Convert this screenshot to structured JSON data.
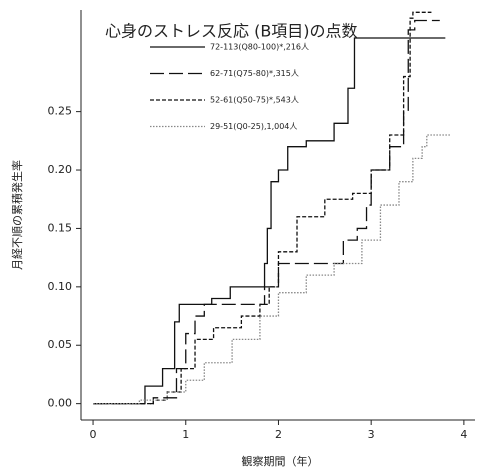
{
  "chart_data": {
    "type": "step",
    "title": "心身のストレス反応 (B項目)の点数",
    "x_label": "観察期間（年）",
    "y_label": "月経不順の累積発生率",
    "xlim": [
      -0.13,
      4.12
    ],
    "ylim": [
      -0.014,
      0.337
    ],
    "xticks": [
      0,
      1,
      2,
      3,
      4
    ],
    "yticks": [
      {
        "value": 0,
        "label": "0.00"
      },
      {
        "value": 0.05,
        "label": "0.05"
      },
      {
        "value": 0.1,
        "label": "0.10"
      },
      {
        "value": 0.15,
        "label": "0.15"
      },
      {
        "value": 0.2,
        "label": "0.20"
      },
      {
        "value": 0.25,
        "label": "0.25"
      }
    ],
    "series": [
      {
        "name": "72-113(Q80-100)*,216人",
        "color": "#111",
        "dash": "none",
        "x": [
          0,
          0.56,
          0.75,
          0.88,
          0.93,
          1.28,
          1.48,
          1.85,
          1.88,
          1.92,
          2.0,
          2.1,
          2.3,
          2.6,
          2.75,
          2.82,
          3.8
        ],
        "values": [
          0,
          0.015,
          0.03,
          0.07,
          0.085,
          0.09,
          0.1,
          0.12,
          0.15,
          0.19,
          0.2,
          0.22,
          0.225,
          0.24,
          0.27,
          0.313,
          0.313
        ]
      },
      {
        "name": "62-71(Q75-80)*,315人",
        "color": "#111",
        "dash": "14 5",
        "x": [
          0,
          0.65,
          0.9,
          1.0,
          1.1,
          1.2,
          1.85,
          2.0,
          2.7,
          2.85,
          2.95,
          3.0,
          3.2,
          3.35,
          3.4,
          3.47,
          3.74
        ],
        "values": [
          0,
          0.005,
          0.03,
          0.06,
          0.075,
          0.085,
          0.1,
          0.12,
          0.14,
          0.15,
          0.17,
          0.2,
          0.22,
          0.25,
          0.32,
          0.328,
          0.328
        ]
      },
      {
        "name": "52-61(Q50-75)*,543人",
        "color": "#111",
        "dash": "4 2",
        "x": [
          0,
          0.65,
          0.8,
          0.95,
          1.1,
          1.3,
          1.6,
          1.8,
          1.9,
          2.0,
          2.2,
          2.5,
          2.8,
          3.0,
          3.2,
          3.35,
          3.42,
          3.45,
          3.65
        ],
        "values": [
          0,
          0.003,
          0.01,
          0.03,
          0.055,
          0.065,
          0.075,
          0.085,
          0.1,
          0.13,
          0.16,
          0.175,
          0.18,
          0.2,
          0.23,
          0.28,
          0.33,
          0.335,
          0.335
        ]
      },
      {
        "name": "29-51(Q0-25),1,004人",
        "color": "#888",
        "dash": "1.5 1.5",
        "x": [
          0,
          0.5,
          0.8,
          1.0,
          1.2,
          1.5,
          1.8,
          2.0,
          2.3,
          2.6,
          2.9,
          3.1,
          3.3,
          3.45,
          3.55,
          3.6,
          3.85
        ],
        "values": [
          0,
          0.003,
          0.01,
          0.02,
          0.035,
          0.055,
          0.075,
          0.095,
          0.11,
          0.12,
          0.14,
          0.17,
          0.19,
          0.21,
          0.22,
          0.23,
          0.23
        ]
      }
    ]
  }
}
